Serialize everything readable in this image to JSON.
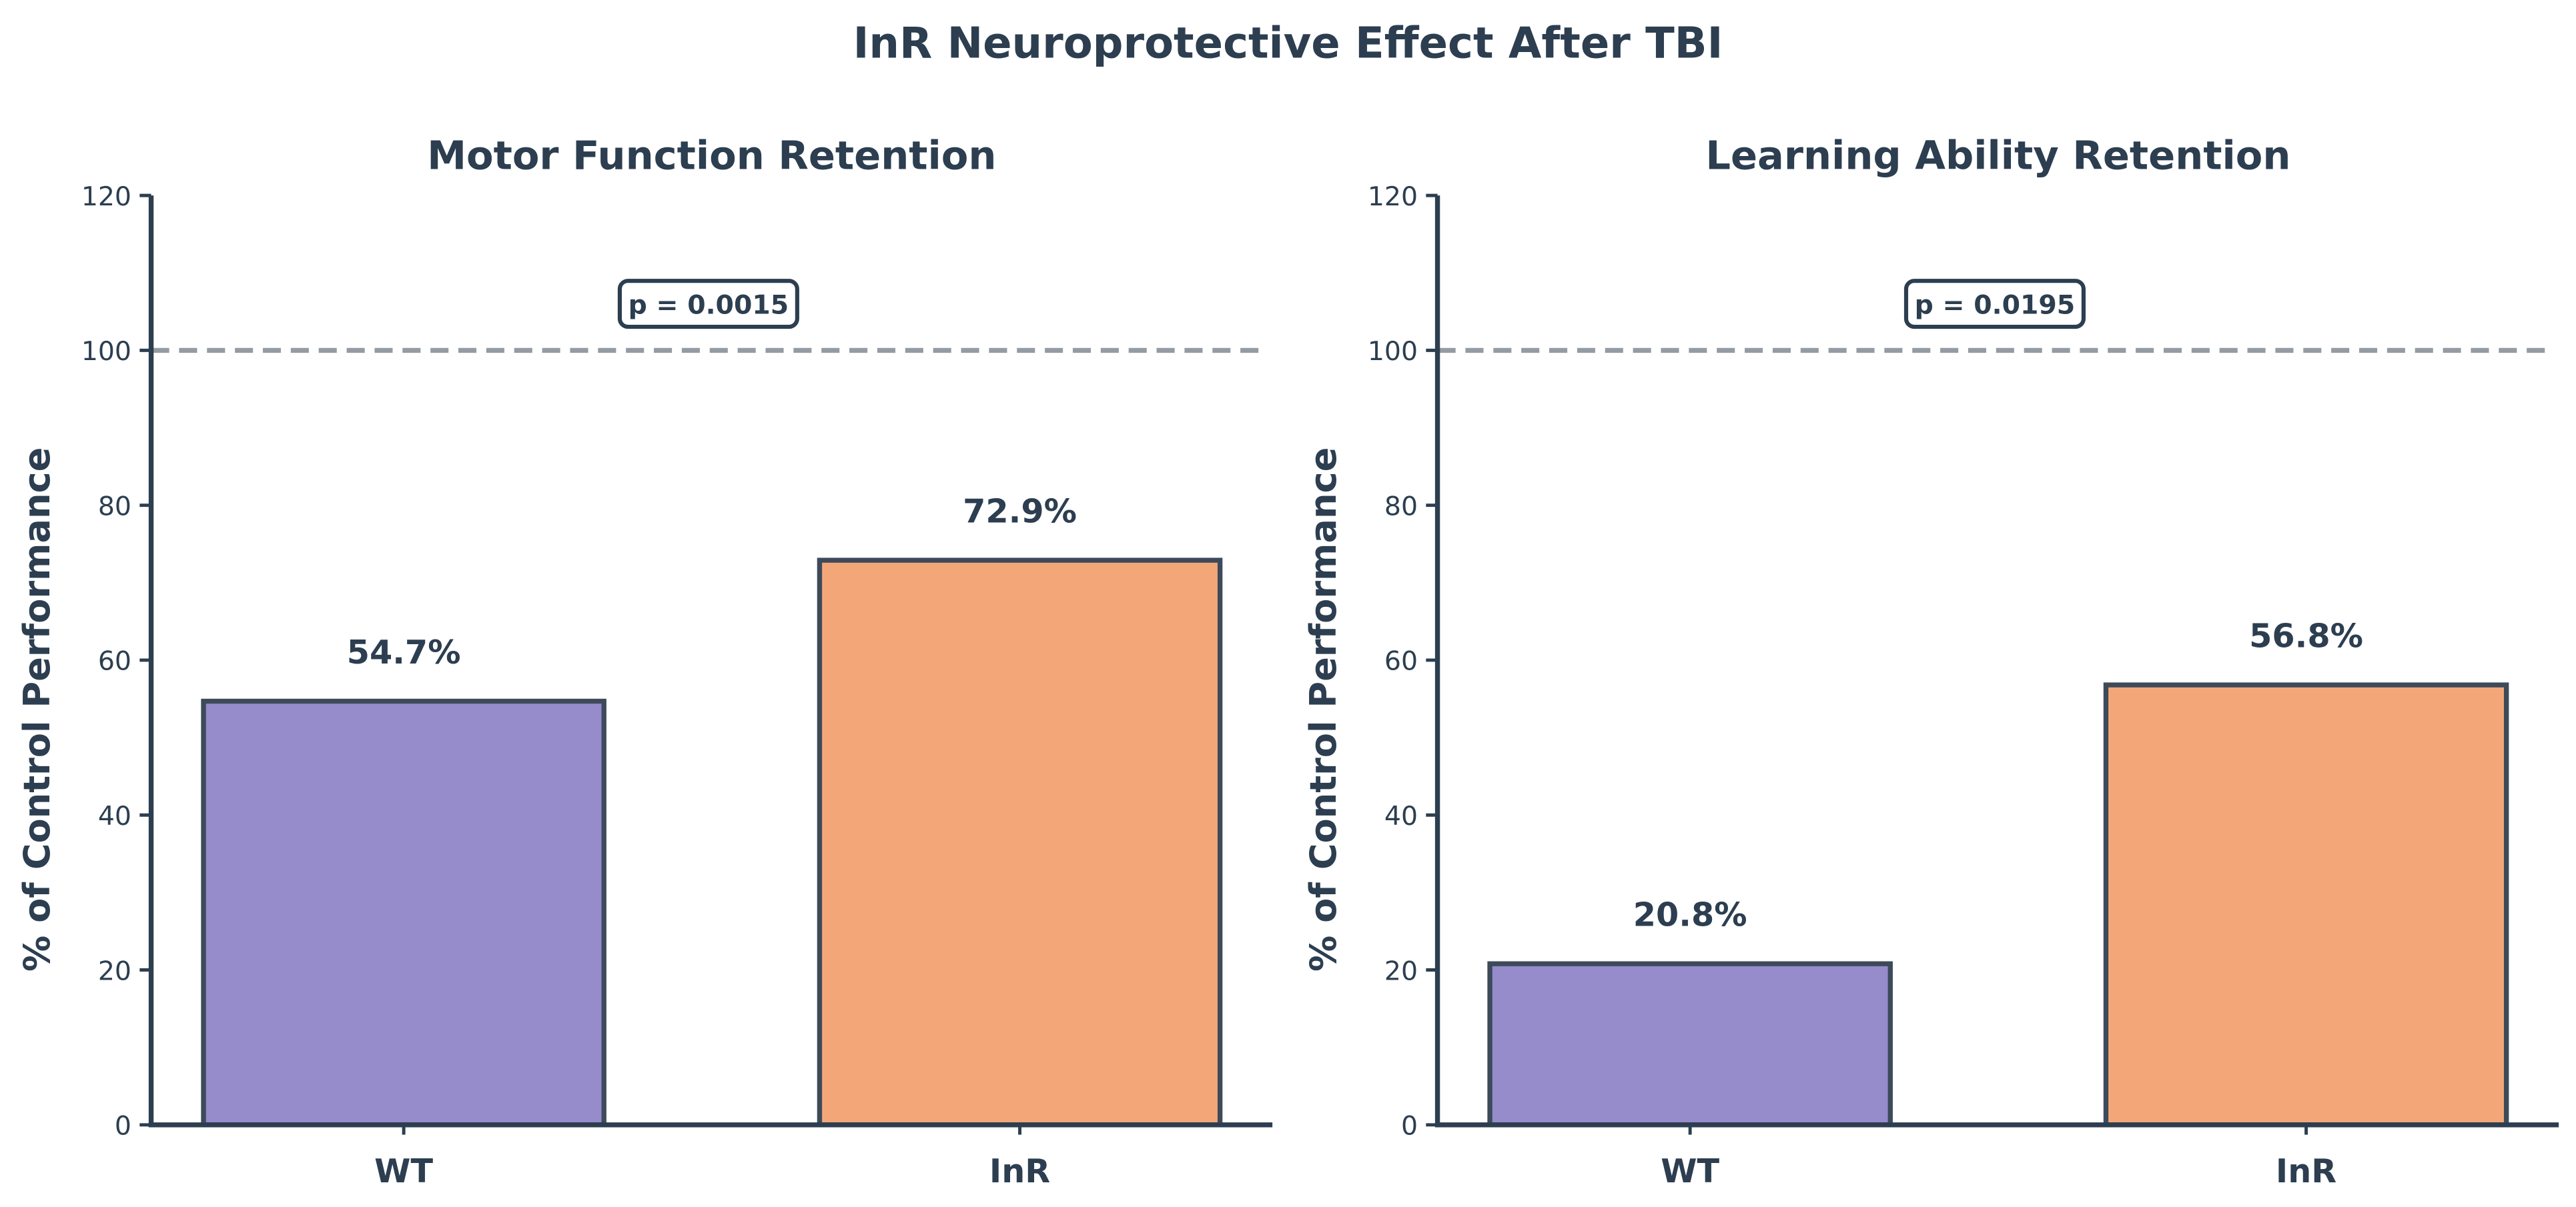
{
  "title": "InR Neuroprotective Effect After TBI",
  "colors": {
    "text": "#2c3e50",
    "wt_bar": "#968bcb",
    "inr_bar": "#f3a779",
    "bar_edge": "#3d4a5a",
    "reference_line": "#959ba3"
  },
  "chart_data": [
    {
      "type": "bar",
      "title": "Motor Function Retention",
      "ylabel": "% of Control Performance",
      "xlabel": "",
      "categories": [
        "WT",
        "InR"
      ],
      "values": [
        54.7,
        72.9
      ],
      "data_labels": [
        "54.7%",
        "72.9%"
      ],
      "ylim": [
        0,
        120
      ],
      "yticks": [
        0,
        20,
        40,
        60,
        80,
        100,
        120
      ],
      "reference_line": {
        "y": 100,
        "style": "dashed"
      },
      "annotation": "p = 0.0015",
      "grid": false
    },
    {
      "type": "bar",
      "title": "Learning Ability Retention",
      "ylabel": "% of Control Performance",
      "xlabel": "",
      "categories": [
        "WT",
        "InR"
      ],
      "values": [
        20.8,
        56.8
      ],
      "data_labels": [
        "20.8%",
        "56.8%"
      ],
      "ylim": [
        0,
        120
      ],
      "yticks": [
        0,
        20,
        40,
        60,
        80,
        100,
        120
      ],
      "reference_line": {
        "y": 100,
        "style": "dashed"
      },
      "annotation": "p = 0.0195",
      "grid": false
    }
  ]
}
